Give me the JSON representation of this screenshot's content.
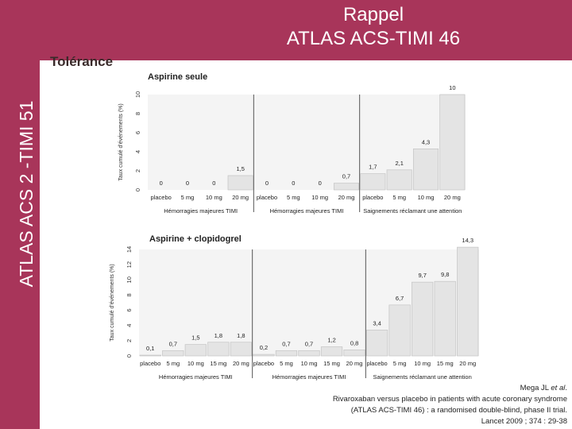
{
  "header": {
    "side_title": "ATLAS ACS 2 -TIMI 51",
    "title_line1": "Rappel",
    "title_line2": "ATLAS ACS-TIMI 46"
  },
  "section_heading": "Tolérance",
  "colors": {
    "band": "#a8355a",
    "bar": "#e4e4e4",
    "bar_stroke": "#c4c4c4",
    "panel": "#f4f4f4",
    "separator": "#555555"
  },
  "chart_data": [
    {
      "type": "bar",
      "title": "Aspirine seule",
      "ylabel": "Taux cumulé d'événements (%)",
      "ylim": [
        0,
        10
      ],
      "yticks": [
        "0",
        "2",
        "4",
        "6",
        "8",
        "10"
      ],
      "categories": [
        "placebo",
        "5 mg",
        "10 mg",
        "20 mg",
        "placebo",
        "5 mg",
        "10 mg",
        "20 mg",
        "placebo",
        "5 mg",
        "10 mg",
        "20 mg"
      ],
      "values": [
        0,
        0,
        0,
        1.5,
        0,
        0,
        0,
        0.7,
        1.7,
        2.1,
        4.3,
        10
      ],
      "labels": [
        "0",
        "0",
        "0",
        "1,5",
        "0",
        "0",
        "0",
        "0,7",
        "1,7",
        "2,1",
        "4,3",
        "10"
      ],
      "groups": [
        "Hémorragies majeures TIMI",
        "Hémorragies majeures TIMI",
        "Saignements réclamant une attention"
      ]
    },
    {
      "type": "bar",
      "title": "Aspirine + clopidogrel",
      "ylabel": "Taux cumulé d'événements (%)",
      "ylim": [
        0,
        14
      ],
      "yticks": [
        "0",
        "2",
        "4",
        "6",
        "8",
        "10",
        "12",
        "14"
      ],
      "categories": [
        "placebo",
        "5 mg",
        "10 mg",
        "15 mg",
        "20 mg",
        "placebo",
        "5 mg",
        "10 mg",
        "15 mg",
        "20 mg",
        "placebo",
        "5 mg",
        "10 mg",
        "15 mg",
        "20 mg"
      ],
      "values": [
        0.1,
        0.7,
        1.5,
        1.8,
        1.8,
        0.2,
        0.7,
        0.7,
        1.2,
        0.8,
        3.4,
        6.7,
        9.7,
        9.8,
        14.3
      ],
      "labels": [
        "0,1",
        "0,7",
        "1,5",
        "1,8",
        "1,8",
        "0,2",
        "0,7",
        "0,7",
        "1,2",
        "0,8",
        "3,4",
        "6,7",
        "9,7",
        "9,8",
        "14,3"
      ],
      "groups": [
        "Hémorragies majeures TIMI",
        "Hémorragies majeures TIMI",
        "Saignements réclamant une attention"
      ]
    }
  ],
  "citation": {
    "author_prefix": "Mega JL ",
    "author_etal": "et al",
    "author_suffix": ".",
    "line2": "Rivaroxaban versus placebo in patients with acute coronary syndrome",
    "line3": "(ATLAS ACS-TIMI 46) : a randomised double-blind, phase II trial.",
    "line4": "Lancet 2009 ; 374 : 29-38"
  }
}
